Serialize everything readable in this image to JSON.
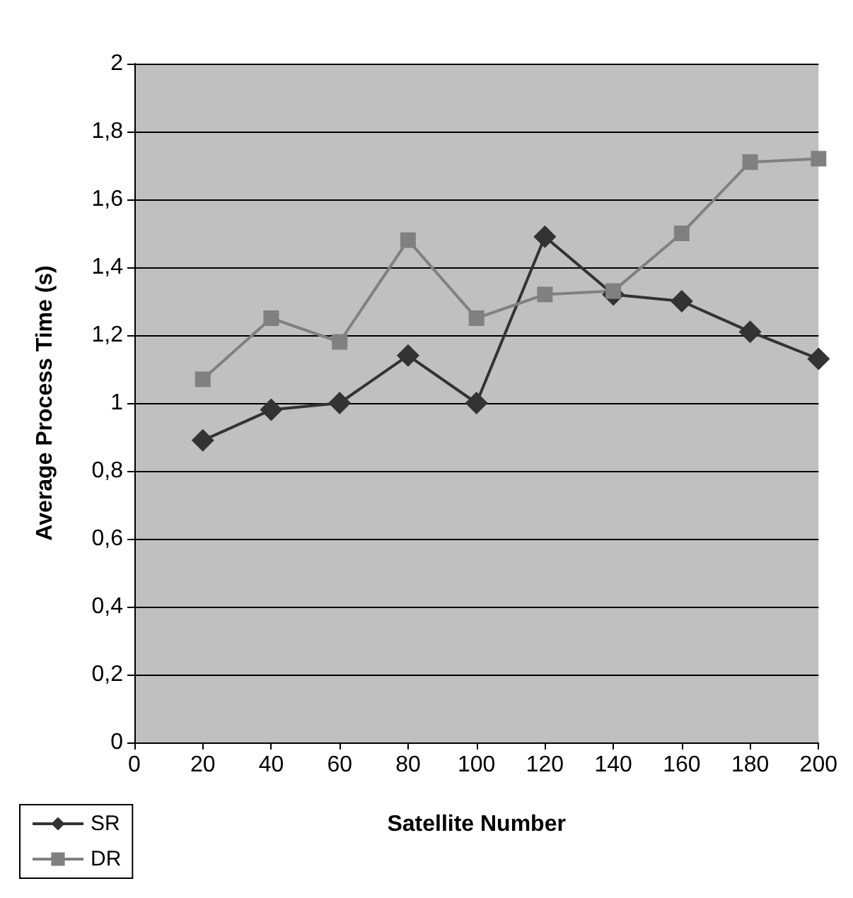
{
  "chart_data": {
    "type": "line",
    "xlabel": "Satellite Number",
    "ylabel": "Average Process Time (s)",
    "x": [
      20,
      40,
      60,
      80,
      100,
      120,
      140,
      160,
      180,
      200
    ],
    "series": [
      {
        "name": "SR",
        "color": "#333333",
        "marker": "diamond",
        "values": [
          0.89,
          0.98,
          1.0,
          1.14,
          1.0,
          1.49,
          1.32,
          1.3,
          1.21,
          1.13
        ]
      },
      {
        "name": "DR",
        "color": "#808080",
        "marker": "square",
        "values": [
          1.07,
          1.25,
          1.18,
          1.48,
          1.25,
          1.32,
          1.33,
          1.5,
          1.71,
          1.72
        ]
      }
    ],
    "xlim": [
      0,
      200
    ],
    "xticks": [
      0,
      20,
      40,
      60,
      80,
      100,
      120,
      140,
      160,
      180,
      200
    ],
    "ylim": [
      0,
      2
    ],
    "yticks": [
      0,
      {
        "value": 0.2,
        "label": "0,2"
      },
      {
        "value": 0.4,
        "label": "0,4"
      },
      {
        "value": 0.6,
        "label": "0,6"
      },
      {
        "value": 0.8,
        "label": "0,8"
      },
      1,
      {
        "value": 1.2,
        "label": "1,2"
      },
      {
        "value": 1.4,
        "label": "1,4"
      },
      {
        "value": 1.6,
        "label": "1,6"
      },
      {
        "value": 1.8,
        "label": "1,8"
      },
      2
    ],
    "grid": "y",
    "legend": "bottom left"
  }
}
